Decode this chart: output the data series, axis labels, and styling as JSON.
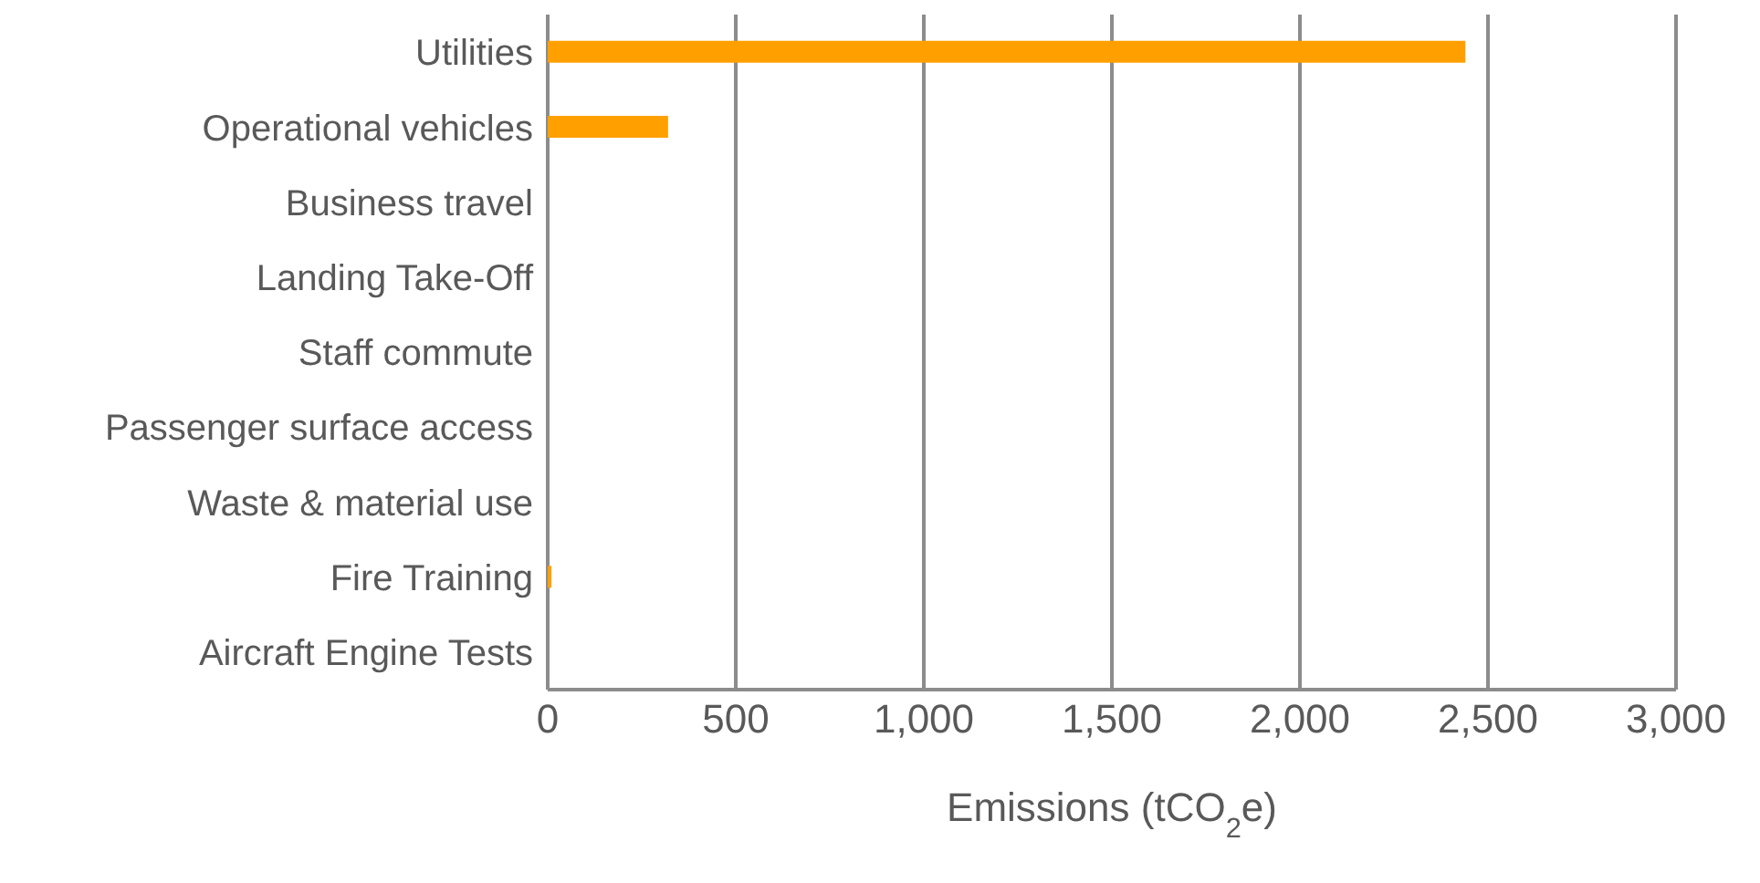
{
  "chart_data": {
    "type": "bar",
    "orientation": "horizontal",
    "categories": [
      "Utilities",
      "Operational vehicles",
      "Business travel",
      "Landing Take-Off",
      "Staff commute",
      "Passenger surface access",
      "Waste & material use",
      "Fire Training",
      "Aircraft Engine Tests"
    ],
    "values": [
      2440,
      320,
      0,
      0,
      0,
      0,
      0,
      10,
      0
    ],
    "color": "#ffa000",
    "xlabel": "Emissions (tCO$_{2}$e)",
    "xlim": [
      0,
      3000
    ],
    "xticks": [
      {
        "value": 0,
        "label": "0"
      },
      {
        "value": 500,
        "label": "500"
      },
      {
        "value": 1000,
        "label": "1,000"
      },
      {
        "value": 1500,
        "label": "1,500"
      },
      {
        "value": 2000,
        "label": "2,000"
      },
      {
        "value": 2500,
        "label": "2,500"
      },
      {
        "value": 3000,
        "label": "3,000"
      }
    ],
    "grid": "x"
  }
}
